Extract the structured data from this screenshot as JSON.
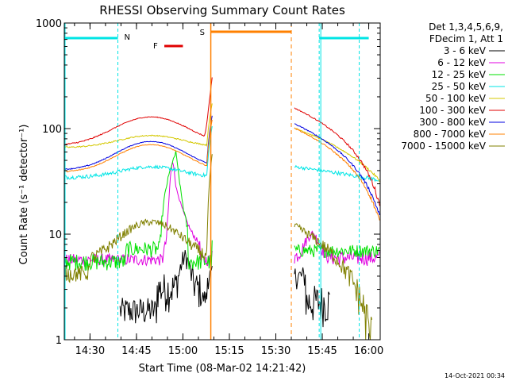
{
  "chart_data": {
    "type": "line",
    "title": "RHESSI Observing Summary Count Rates",
    "xlabel": "Start Time (08-Mar-02 14:21:42)",
    "ylabel": "Count Rate (s⁻¹ detector⁻¹)",
    "yscale": "log",
    "ylim": [
      1,
      1000
    ],
    "xlim_minutes_after_1421": [
      0,
      102
    ],
    "x_ticks": [
      "14:30",
      "14:45",
      "15:00",
      "15:15",
      "15:30",
      "15:45",
      "16:00"
    ],
    "y_ticks": [
      "1",
      "10",
      "100",
      "1000"
    ],
    "legend_header": [
      "Det 1,3,4,5,6,9,",
      "FDecim 1, Att 1"
    ],
    "legend_position": "right",
    "timestamp": "14-Oct-2021 00:34",
    "annotations": {
      "N": {
        "label": "N",
        "color": "#00e5e5",
        "intervals": [
          [
            "14:21:42",
            "14:39:00"
          ],
          [
            "15:44:00",
            "16:00:00"
          ]
        ],
        "vlines": [
          "14:39:00",
          "15:44:00"
        ]
      },
      "S": {
        "label": "S",
        "color": "#ff8000",
        "interval": [
          "15:09:00",
          "15:35:00"
        ],
        "start_line": "15:09:00",
        "end_line": "15:35:00"
      },
      "F": {
        "label": "F",
        "color": "#e00000",
        "interval": [
          "14:54:00",
          "15:00:00"
        ]
      }
    },
    "gap": [
      "15:09:30",
      "15:36:00"
    ],
    "series": [
      {
        "name": "3 - 6 keV",
        "color": "#000000"
      },
      {
        "name": "6 - 12 keV",
        "color": "#e000e0"
      },
      {
        "name": "12 - 25 keV",
        "color": "#00e000"
      },
      {
        "name": "25 - 50 keV",
        "color": "#00e5e5"
      },
      {
        "name": "50 - 100 keV",
        "color": "#d4c800"
      },
      {
        "name": "100 - 300 keV",
        "color": "#e00000"
      },
      {
        "name": "300 - 800 keV",
        "color": "#0000e0"
      },
      {
        "name": "800 - 7000 keV",
        "color": "#ff8000"
      },
      {
        "name": "7000 - 15000 keV",
        "color": "#808000"
      }
    ]
  }
}
